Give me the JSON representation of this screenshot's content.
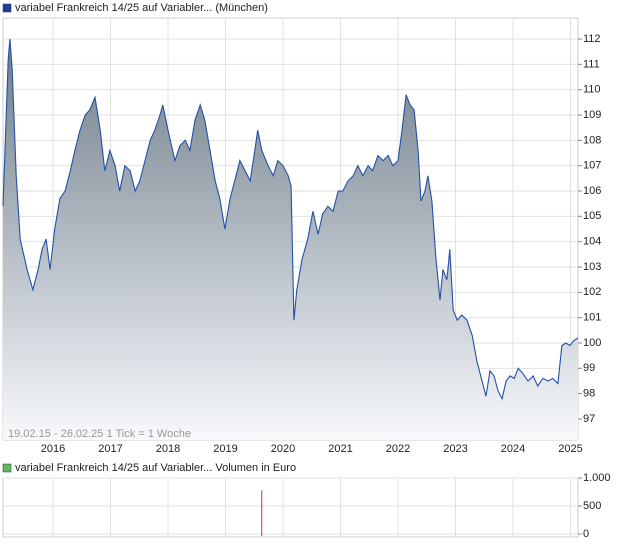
{
  "chart_data": [
    {
      "type": "area",
      "series": [
        {
          "name": "variabel Frankreich 14/25 auf Variabler... (München)",
          "color": "#2251a6",
          "legend_color": "#1f3f99",
          "x": [
            2015.13,
            2015.22,
            2015.25,
            2015.29,
            2015.36,
            2015.43,
            2015.55,
            2015.65,
            2015.74,
            2015.81,
            2015.88,
            2015.95,
            2016.03,
            2016.12,
            2016.21,
            2016.3,
            2016.38,
            2016.47,
            2016.56,
            2016.64,
            2016.73,
            2016.82,
            2016.9,
            2016.99,
            2017.08,
            2017.16,
            2017.25,
            2017.34,
            2017.43,
            2017.51,
            2017.6,
            2017.69,
            2017.77,
            2017.86,
            2017.91,
            2018.0,
            2018.12,
            2018.21,
            2018.3,
            2018.38,
            2018.47,
            2018.56,
            2018.64,
            2018.73,
            2018.82,
            2018.9,
            2018.99,
            2019.08,
            2019.16,
            2019.25,
            2019.34,
            2019.43,
            2019.51,
            2019.56,
            2019.63,
            2019.74,
            2019.83,
            2019.91,
            2020.0,
            2020.09,
            2020.14,
            2020.19,
            2020.24,
            2020.33,
            2020.43,
            2020.52,
            2020.61,
            2020.69,
            2020.78,
            2020.87,
            2020.96,
            2021.04,
            2021.13,
            2021.22,
            2021.3,
            2021.39,
            2021.48,
            2021.56,
            2021.65,
            2021.74,
            2021.83,
            2021.91,
            2022.0,
            2022.07,
            2022.14,
            2022.21,
            2022.28,
            2022.35,
            2022.4,
            2022.47,
            2022.52,
            2022.59,
            2022.66,
            2022.73,
            2022.78,
            2022.85,
            2022.9,
            2022.96,
            2023.03,
            2023.11,
            2023.2,
            2023.29,
            2023.37,
            2023.46,
            2023.53,
            2023.6,
            2023.67,
            2023.74,
            2023.81,
            2023.88,
            2023.95,
            2024.02,
            2024.09,
            2024.17,
            2024.26,
            2024.35,
            2024.43,
            2024.52,
            2024.61,
            2024.69,
            2024.78,
            2024.85,
            2024.92,
            2024.99,
            2025.06,
            2025.13
          ],
          "values": [
            105.4,
            111.2,
            112.0,
            110.8,
            106.6,
            104.1,
            102.9,
            102.1,
            102.9,
            103.7,
            104.1,
            102.9,
            104.5,
            105.7,
            106.0,
            106.8,
            107.6,
            108.4,
            109.0,
            109.2,
            109.7,
            108.4,
            106.8,
            107.6,
            107.0,
            106.0,
            107.0,
            106.8,
            106.0,
            106.4,
            107.2,
            108.0,
            108.4,
            109.0,
            109.4,
            108.4,
            107.2,
            107.8,
            108.0,
            107.6,
            108.8,
            109.4,
            108.8,
            107.6,
            106.4,
            105.7,
            104.5,
            105.7,
            106.4,
            107.2,
            106.8,
            106.4,
            107.6,
            108.4,
            107.6,
            107.0,
            106.6,
            107.2,
            107.0,
            106.6,
            106.2,
            100.9,
            102.1,
            103.3,
            104.1,
            105.2,
            104.3,
            105.1,
            105.4,
            105.2,
            106.0,
            106.0,
            106.4,
            106.6,
            107.0,
            106.6,
            107.0,
            106.8,
            107.4,
            107.2,
            107.4,
            107.0,
            107.2,
            108.4,
            109.8,
            109.4,
            109.2,
            107.6,
            105.6,
            106.0,
            106.6,
            105.6,
            103.3,
            101.7,
            102.9,
            102.5,
            103.7,
            101.3,
            100.9,
            101.1,
            100.9,
            100.3,
            99.3,
            98.5,
            97.9,
            98.9,
            98.7,
            98.1,
            97.8,
            98.5,
            98.7,
            98.6,
            99.0,
            98.8,
            98.5,
            98.7,
            98.3,
            98.6,
            98.5,
            98.6,
            98.4,
            99.9,
            100.0,
            99.9,
            100.1,
            100.2
          ]
        }
      ],
      "xlim": [
        2015.13,
        2025.13
      ],
      "xticks": [
        2016,
        2017,
        2018,
        2019,
        2020,
        2021,
        2022,
        2023,
        2024,
        2025
      ],
      "ylim": [
        96.17,
        112.83
      ],
      "yticks": [
        97,
        98,
        99,
        100,
        101,
        102,
        103,
        104,
        105,
        106,
        107,
        108,
        109,
        110,
        111,
        112
      ],
      "annotation": "19.02.15 - 26.02.25   1 Tick = 1 Woche",
      "grid": true
    },
    {
      "type": "bar",
      "series": [
        {
          "name": "variabel Frankreich 14/25 auf Variabler... Volumen in Euro",
          "color": "#cc3333",
          "legend_color": "#5cb85c",
          "x": [
            2019.63
          ],
          "values": [
            780
          ]
        }
      ],
      "xlim": [
        2015.13,
        2025.13
      ],
      "xticks": [
        2016,
        2017,
        2018,
        2019,
        2020,
        2021,
        2022,
        2023,
        2024,
        2025
      ],
      "ylim": [
        0,
        1000
      ],
      "yticks": [
        0,
        {
          "value": 500,
          "label": "500"
        },
        {
          "value": 1000,
          "label": "1.000"
        }
      ],
      "grid": true
    }
  ]
}
